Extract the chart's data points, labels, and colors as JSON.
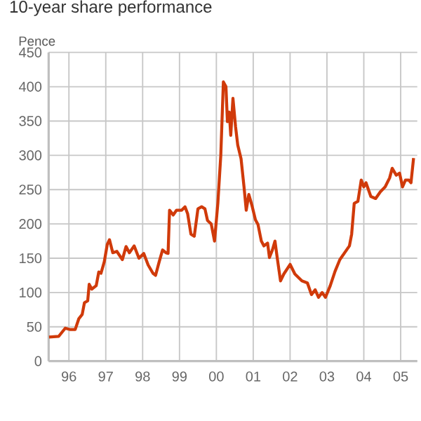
{
  "chart_data": {
    "type": "line",
    "title": "10-year share performance",
    "ylabel": "Pence",
    "x": [
      1995.46,
      1995.72,
      1995.9,
      1996.04,
      1996.17,
      1996.27,
      1996.36,
      1996.42,
      1996.51,
      1996.55,
      1996.62,
      1996.74,
      1996.81,
      1996.87,
      1996.96,
      1997.04,
      1997.1,
      1997.19,
      1997.3,
      1997.45,
      1997.55,
      1997.64,
      1997.77,
      1997.9,
      1998.03,
      1998.15,
      1998.28,
      1998.35,
      1998.45,
      1998.54,
      1998.63,
      1998.69,
      1998.73,
      1998.83,
      1998.92,
      1999.06,
      1999.15,
      1999.22,
      1999.31,
      1999.4,
      1999.5,
      1999.6,
      1999.69,
      1999.76,
      1999.86,
      1999.95,
      2000.04,
      2000.12,
      2000.19,
      2000.26,
      2000.3,
      2000.35,
      2000.39,
      2000.45,
      2000.52,
      2000.58,
      2000.67,
      2000.75,
      2000.81,
      2000.88,
      2000.97,
      2001.06,
      2001.13,
      2001.22,
      2001.29,
      2001.39,
      2001.44,
      2001.52,
      2001.59,
      2001.65,
      2001.74,
      2001.83,
      2002.0,
      2002.13,
      2002.32,
      2002.47,
      2002.58,
      2002.68,
      2002.77,
      2002.87,
      2002.96,
      2003.09,
      2003.22,
      2003.35,
      2003.48,
      2003.61,
      2003.67,
      2003.74,
      2003.84,
      2003.93,
      2004.0,
      2004.06,
      2004.19,
      2004.32,
      2004.45,
      2004.58,
      2004.7,
      2004.77,
      2004.88,
      2004.97,
      2005.05,
      2005.13,
      2005.22,
      2005.28,
      2005.35
    ],
    "series": [
      {
        "color": "#d03a0a",
        "values": [
          35,
          36,
          48,
          46,
          46,
          62,
          68,
          85,
          88,
          112,
          105,
          110,
          130,
          128,
          145,
          170,
          177,
          158,
          160,
          148,
          167,
          158,
          168,
          150,
          157,
          140,
          128,
          125,
          145,
          162,
          158,
          157,
          220,
          213,
          220,
          220,
          225,
          215,
          185,
          182,
          222,
          225,
          222,
          205,
          200,
          175,
          230,
          300,
          407,
          400,
          349,
          363,
          329,
          383,
          342,
          315,
          295,
          254,
          220,
          243,
          226,
          206,
          199,
          175,
          168,
          172,
          151,
          162,
          175,
          151,
          117,
          127,
          141,
          127,
          117,
          114,
          97,
          104,
          93,
          100,
          93,
          110,
          131,
          148,
          158,
          168,
          185,
          230,
          233,
          264,
          254,
          260,
          240,
          237,
          247,
          254,
          267,
          281,
          271,
          274,
          254,
          264,
          264,
          260,
          296
        ]
      }
    ],
    "xlim": [
      1995.45,
      2005.45
    ],
    "ylim": [
      0,
      450
    ],
    "xticks": [
      {
        "value": 1996,
        "label": "96"
      },
      {
        "value": 1997,
        "label": "97"
      },
      {
        "value": 1998,
        "label": "98"
      },
      {
        "value": 1999,
        "label": "99"
      },
      {
        "value": 2000,
        "label": "00"
      },
      {
        "value": 2001,
        "label": "01"
      },
      {
        "value": 2002,
        "label": "02"
      },
      {
        "value": 2003,
        "label": "03"
      },
      {
        "value": 2004,
        "label": "04"
      },
      {
        "value": 2005,
        "label": "05"
      }
    ],
    "yticks": [
      0,
      50,
      100,
      150,
      200,
      250,
      300,
      350,
      400,
      450
    ],
    "grid": true
  }
}
